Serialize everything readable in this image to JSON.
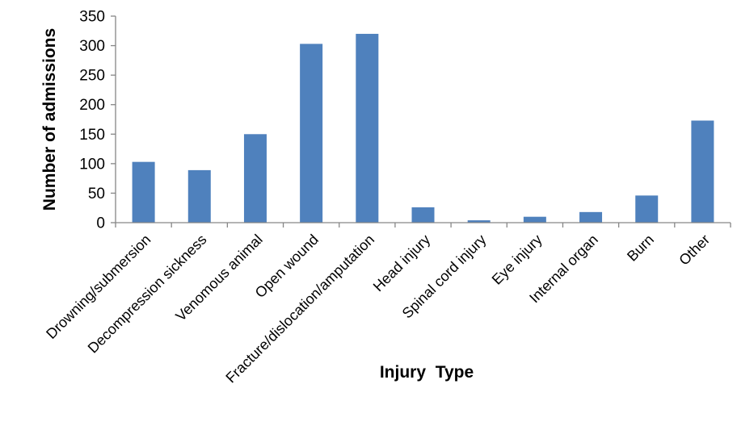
{
  "chart_data": {
    "type": "bar",
    "title": "",
    "xlabel": "Injury  Type",
    "ylabel": "Number of admissions",
    "categories": [
      "Drowning/submersion",
      "Decompression sickness",
      "Venomous animal",
      "Open wound",
      "Fracture/dislocation/amputation",
      "Head injury",
      "Spinal cord injury",
      "Eye injury",
      "Internal organ",
      "Burn",
      "Other"
    ],
    "values": [
      103,
      89,
      150,
      303,
      320,
      26,
      4,
      10,
      18,
      46,
      173
    ],
    "ylim": [
      0,
      350
    ],
    "yticks": [
      0,
      50,
      100,
      150,
      200,
      250,
      300,
      350
    ],
    "grid": false,
    "legend": "none",
    "bar_color": "#4f81bd",
    "axis_color": "#868686"
  }
}
